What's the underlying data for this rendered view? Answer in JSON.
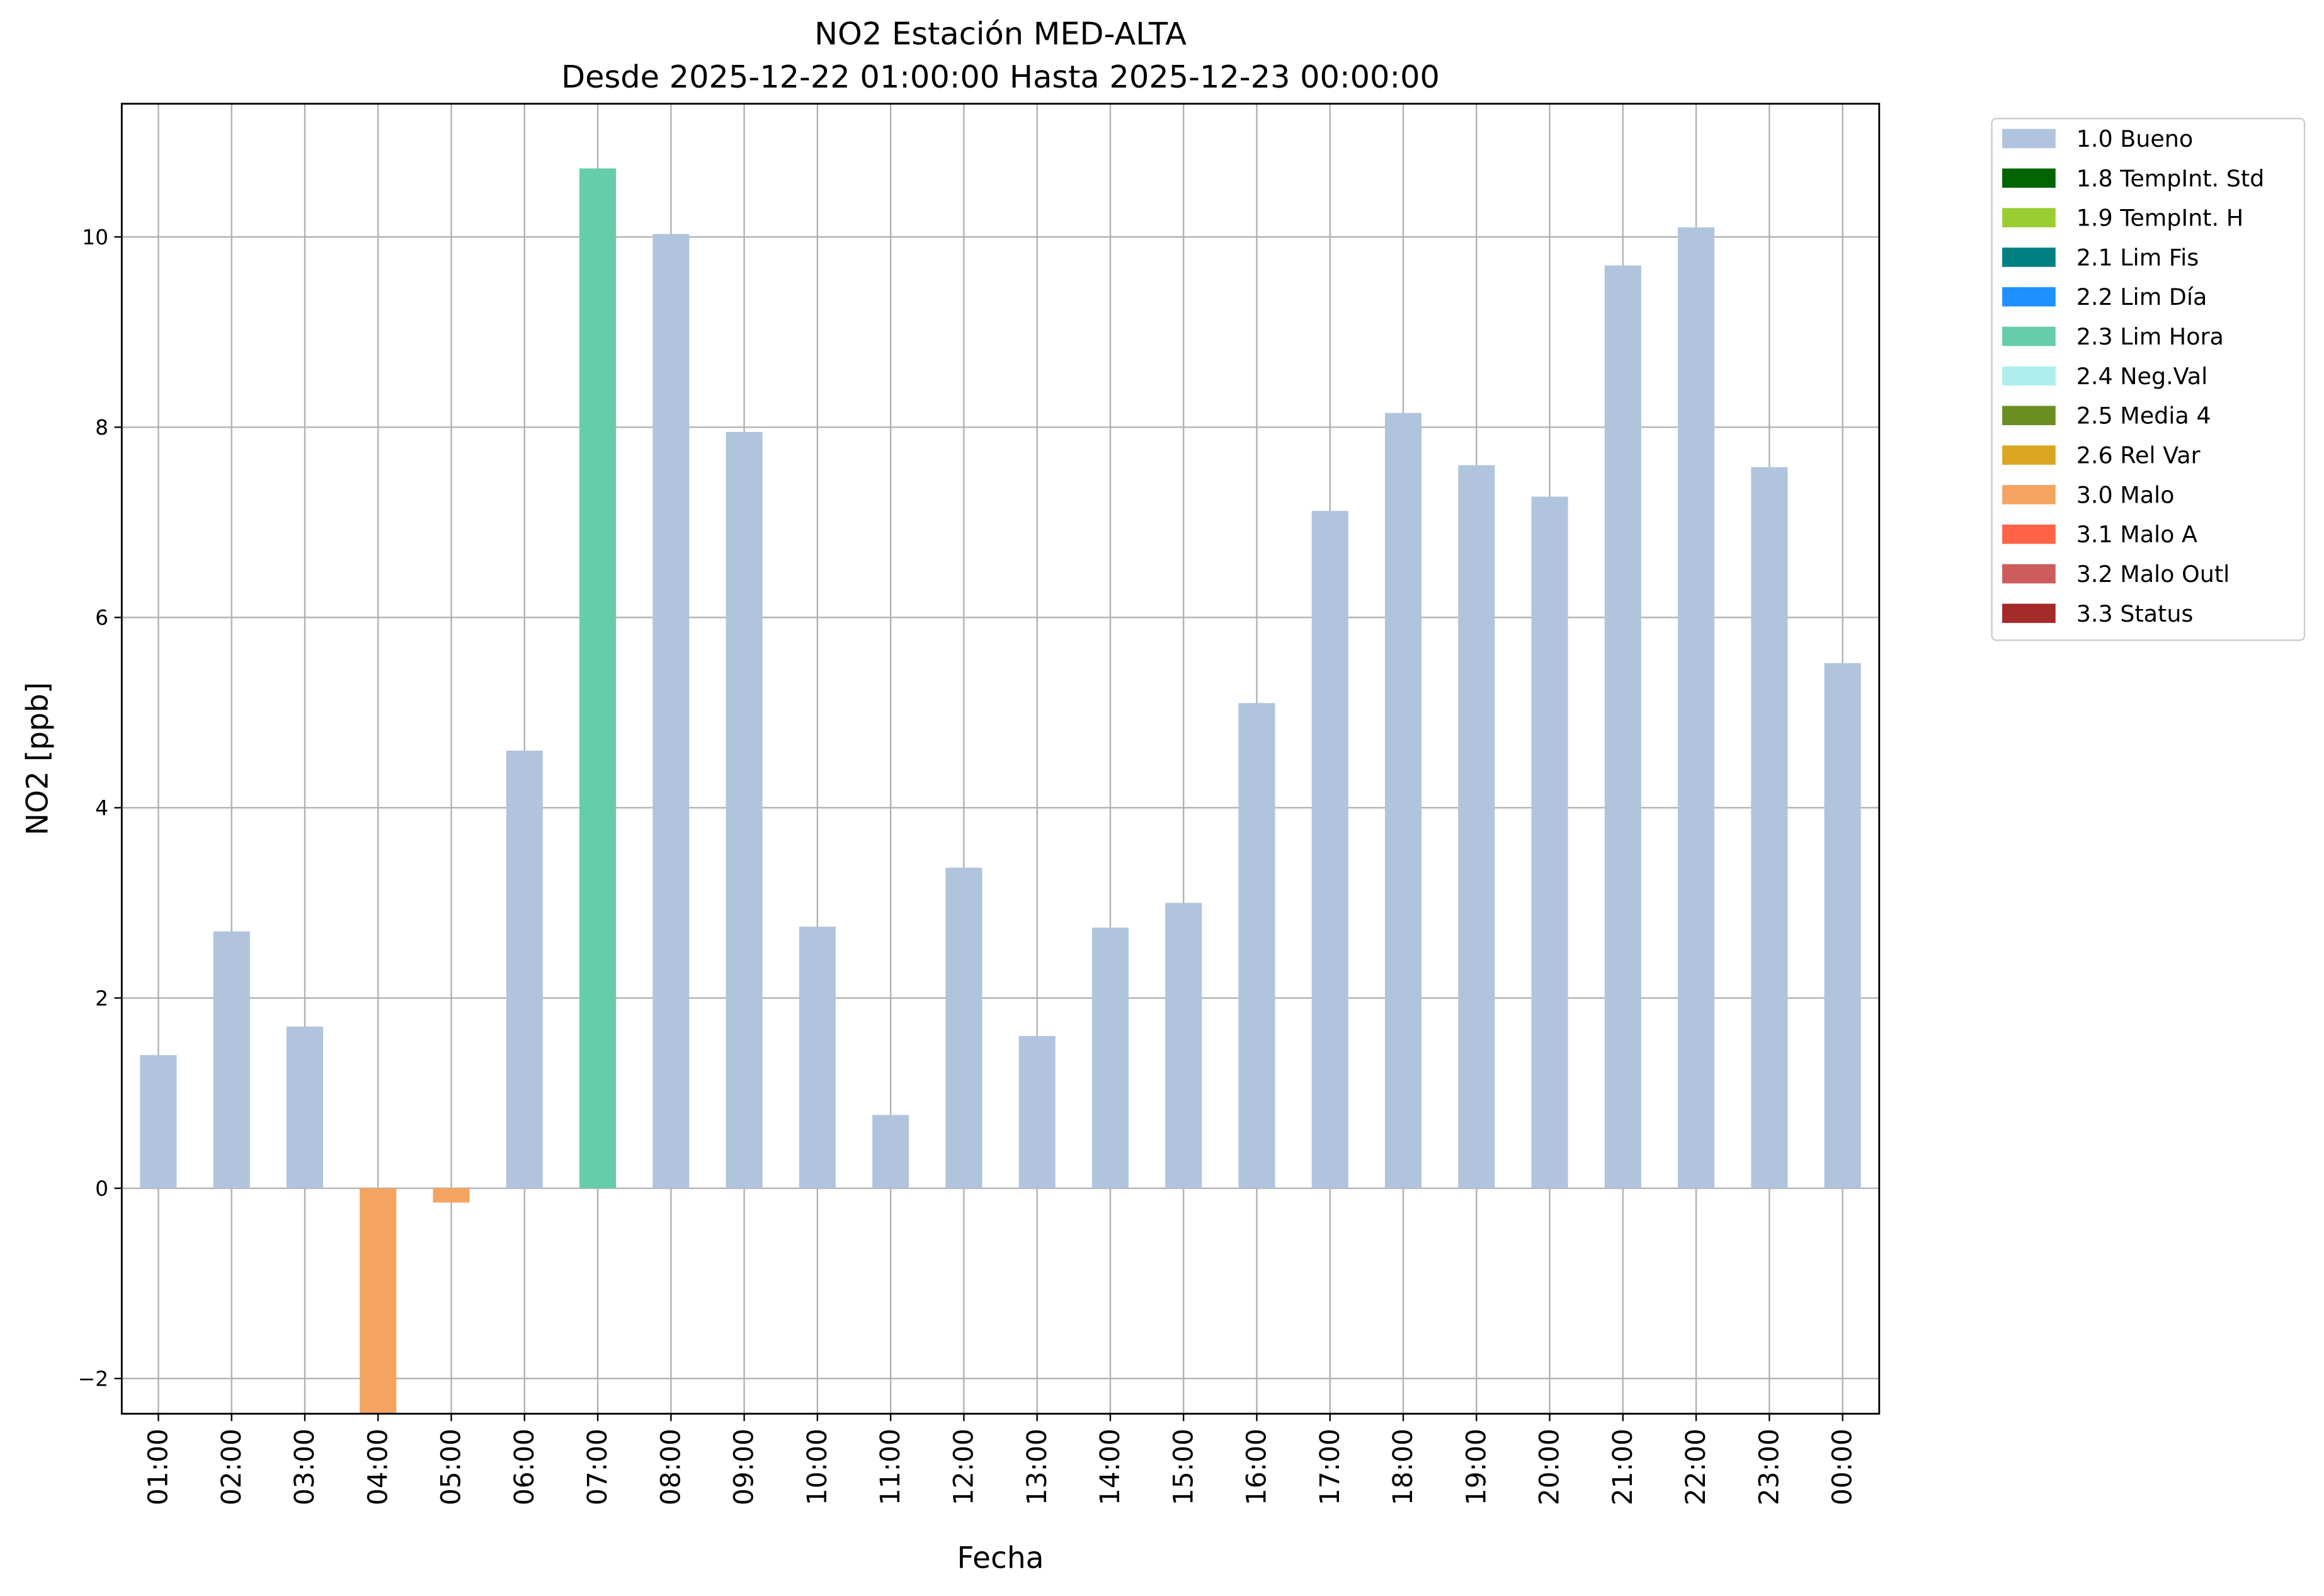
{
  "chart_data": {
    "type": "bar",
    "title": "NO2 Estación MED-ALTA",
    "subtitle": "Desde 2025-12-22 01:00:00 Hasta 2025-12-23 00:00:00",
    "x_label": "Fecha",
    "y_label": "NO2 [ppb]",
    "categories": [
      "01:00",
      "02:00",
      "03:00",
      "04:00",
      "05:00",
      "06:00",
      "07:00",
      "08:00",
      "09:00",
      "10:00",
      "11:00",
      "12:00",
      "13:00",
      "14:00",
      "15:00",
      "16:00",
      "17:00",
      "18:00",
      "19:00",
      "20:00",
      "21:00",
      "22:00",
      "23:00",
      "00:00"
    ],
    "series": [
      {
        "name": "1.0 Bueno",
        "color": "#b0c4de",
        "values": [
          1.4,
          2.7,
          1.7,
          null,
          null,
          4.6,
          null,
          10.03,
          7.95,
          2.75,
          0.77,
          3.37,
          1.6,
          2.74,
          3.0,
          5.1,
          7.12,
          8.15,
          7.6,
          7.27,
          9.7,
          10.1,
          7.58,
          5.52
        ]
      },
      {
        "name": "1.8 TempInt. Std",
        "color": "#006400",
        "values": [
          null,
          null,
          null,
          null,
          null,
          null,
          null,
          null,
          null,
          null,
          null,
          null,
          null,
          null,
          null,
          null,
          null,
          null,
          null,
          null,
          null,
          null,
          null,
          null
        ]
      },
      {
        "name": "1.9 TempInt. H",
        "color": "#9acd32",
        "values": [
          null,
          null,
          null,
          null,
          null,
          null,
          null,
          null,
          null,
          null,
          null,
          null,
          null,
          null,
          null,
          null,
          null,
          null,
          null,
          null,
          null,
          null,
          null,
          null
        ]
      },
      {
        "name": "2.1 Lim Fis",
        "color": "#008080",
        "values": [
          null,
          null,
          null,
          null,
          null,
          null,
          null,
          null,
          null,
          null,
          null,
          null,
          null,
          null,
          null,
          null,
          null,
          null,
          null,
          null,
          null,
          null,
          null,
          null
        ]
      },
      {
        "name": "2.2 Lim Día",
        "color": "#1e90ff",
        "values": [
          null,
          null,
          null,
          null,
          null,
          null,
          null,
          null,
          null,
          null,
          null,
          null,
          null,
          null,
          null,
          null,
          null,
          null,
          null,
          null,
          null,
          null,
          null,
          null
        ]
      },
      {
        "name": "2.3 Lim Hora",
        "color": "#66cdaa",
        "values": [
          null,
          null,
          null,
          null,
          null,
          null,
          10.72,
          null,
          null,
          null,
          null,
          null,
          null,
          null,
          null,
          null,
          null,
          null,
          null,
          null,
          null,
          null,
          null,
          null
        ]
      },
      {
        "name": "2.4 Neg.Val",
        "color": "#afeeee",
        "values": [
          null,
          null,
          null,
          null,
          null,
          null,
          null,
          null,
          null,
          null,
          null,
          null,
          null,
          null,
          null,
          null,
          null,
          null,
          null,
          null,
          null,
          null,
          null,
          null
        ]
      },
      {
        "name": "2.5 Media 4",
        "color": "#6b8e23",
        "values": [
          null,
          null,
          null,
          null,
          null,
          null,
          null,
          null,
          null,
          null,
          null,
          null,
          null,
          null,
          null,
          null,
          null,
          null,
          null,
          null,
          null,
          null,
          null,
          null
        ]
      },
      {
        "name": "2.6 Rel Var",
        "color": "#daa520",
        "values": [
          null,
          null,
          null,
          null,
          null,
          null,
          null,
          null,
          null,
          null,
          null,
          null,
          null,
          null,
          null,
          null,
          null,
          null,
          null,
          null,
          null,
          null,
          null,
          null
        ]
      },
      {
        "name": "3.0 Malo",
        "color": "#f4a460",
        "values": [
          null,
          null,
          null,
          -2.5,
          -0.15,
          null,
          null,
          null,
          null,
          null,
          null,
          null,
          null,
          null,
          null,
          null,
          null,
          null,
          null,
          null,
          null,
          null,
          null,
          null
        ]
      },
      {
        "name": "3.1 Malo A",
        "color": "#ff6347",
        "values": [
          null,
          null,
          null,
          null,
          null,
          null,
          null,
          null,
          null,
          null,
          null,
          null,
          null,
          null,
          null,
          null,
          null,
          null,
          null,
          null,
          null,
          null,
          null,
          null
        ]
      },
      {
        "name": "3.2 Malo Outl",
        "color": "#cd5c5c",
        "values": [
          null,
          null,
          null,
          null,
          null,
          null,
          null,
          null,
          null,
          null,
          null,
          null,
          null,
          null,
          null,
          null,
          null,
          null,
          null,
          null,
          null,
          null,
          null,
          null
        ]
      },
      {
        "name": "3.3 Status",
        "color": "#a52a2a",
        "values": [
          null,
          null,
          null,
          null,
          null,
          null,
          null,
          null,
          null,
          null,
          null,
          null,
          null,
          null,
          null,
          null,
          null,
          null,
          null,
          null,
          null,
          null,
          null,
          null
        ]
      }
    ],
    "ylim": [
      -2.37,
      11.4
    ],
    "yticks": [
      {
        "value": -2,
        "label": "−2"
      },
      0,
      2,
      4,
      6,
      8,
      10
    ],
    "grid": true,
    "legend": "outside-upper-right"
  }
}
